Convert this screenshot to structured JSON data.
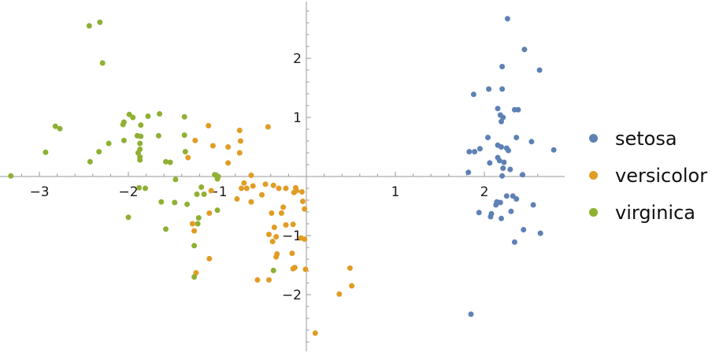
{
  "chart_data": {
    "type": "scatter",
    "x_axis": {
      "range": [
        -3.35,
        2.8
      ],
      "ticks": [
        -3,
        -2,
        -1,
        1,
        2
      ],
      "tick_labels": [
        "−3",
        "−2",
        "−1",
        "1",
        "2"
      ]
    },
    "y_axis": {
      "range": [
        -2.9,
        3.0
      ],
      "ticks": [
        -2,
        -1,
        1,
        2
      ],
      "tick_labels": [
        "−2",
        "−1",
        "1",
        "2"
      ]
    },
    "grid": false,
    "legend_position": "right",
    "series": [
      {
        "name": "setosa",
        "color": "#5e81b5",
        "points": [
          [
            2.26,
            2.67
          ],
          [
            2.45,
            2.15
          ],
          [
            2.62,
            1.8
          ],
          [
            2.2,
            1.86
          ],
          [
            2.2,
            1.48
          ],
          [
            2.05,
            1.48
          ],
          [
            1.88,
            1.39
          ],
          [
            2.15,
            1.15
          ],
          [
            2.38,
            1.13
          ],
          [
            2.34,
            1.13
          ],
          [
            2.18,
            1.04
          ],
          [
            2.21,
            1.0
          ],
          [
            2.19,
            0.93
          ],
          [
            2.36,
            0.66
          ],
          [
            2.04,
            0.66
          ],
          [
            2.53,
            0.59
          ],
          [
            2.15,
            0.53
          ],
          [
            2.19,
            0.5
          ],
          [
            2.25,
            0.48
          ],
          [
            1.95,
            0.47
          ],
          [
            2.78,
            0.45
          ],
          [
            2.27,
            0.44
          ],
          [
            1.83,
            0.42
          ],
          [
            1.89,
            0.42
          ],
          [
            2.15,
            0.32
          ],
          [
            2.17,
            0.27
          ],
          [
            2.22,
            0.24
          ],
          [
            2.06,
            0.23
          ],
          [
            2.21,
            0.14
          ],
          [
            2.29,
            0.12
          ],
          [
            1.82,
            0.07
          ],
          [
            2.43,
            0.03
          ],
          [
            2.2,
            0.01
          ],
          [
            2.25,
            -0.33
          ],
          [
            2.32,
            -0.33
          ],
          [
            2.36,
            -0.38
          ],
          [
            2.14,
            -0.43
          ],
          [
            2.18,
            -0.44
          ],
          [
            2.13,
            -0.48
          ],
          [
            2.55,
            -0.48
          ],
          [
            2.3,
            -0.59
          ],
          [
            1.94,
            -0.61
          ],
          [
            2.08,
            -0.63
          ],
          [
            2.07,
            -0.68
          ],
          [
            2.19,
            -0.71
          ],
          [
            2.44,
            -0.9
          ],
          [
            2.63,
            -0.96
          ],
          [
            2.34,
            -1.11
          ],
          [
            1.85,
            -2.33
          ]
        ]
      },
      {
        "name": "versicolor",
        "color": "#e19c24",
        "points": [
          [
            -1.1,
            0.86
          ],
          [
            -0.75,
            0.78
          ],
          [
            -0.43,
            0.84
          ],
          [
            -1.25,
            0.61
          ],
          [
            -0.74,
            0.6
          ],
          [
            -1.05,
            0.52
          ],
          [
            -0.88,
            0.5
          ],
          [
            -0.75,
            0.4
          ],
          [
            -1.33,
            0.32
          ],
          [
            -0.88,
            0.23
          ],
          [
            -0.62,
            0.02
          ],
          [
            -0.7,
            -0.11
          ],
          [
            -0.37,
            -0.15
          ],
          [
            -0.67,
            -0.2
          ],
          [
            -0.6,
            -0.16
          ],
          [
            -0.46,
            -0.13
          ],
          [
            -0.73,
            -0.2
          ],
          [
            -0.31,
            -0.2
          ],
          [
            -0.23,
            -0.2
          ],
          [
            -0.12,
            -0.19
          ],
          [
            -1.07,
            -0.24
          ],
          [
            -0.05,
            -0.26
          ],
          [
            -0.5,
            -0.31
          ],
          [
            -0.78,
            -0.38
          ],
          [
            -0.62,
            -0.43
          ],
          [
            -0.14,
            -0.27
          ],
          [
            -0.11,
            -0.24
          ],
          [
            -0.04,
            -0.42
          ],
          [
            -0.39,
            -0.62
          ],
          [
            -0.26,
            -0.52
          ],
          [
            -0.28,
            -0.62
          ],
          [
            -0.23,
            -0.82
          ],
          [
            -0.36,
            -0.86
          ],
          [
            -0.15,
            -0.81
          ],
          [
            -0.02,
            -0.55
          ],
          [
            -0.42,
            -0.98
          ],
          [
            -0.34,
            -1.02
          ],
          [
            -0.38,
            -1.1
          ],
          [
            -0.02,
            -1.06
          ],
          [
            -0.06,
            -1.04
          ],
          [
            -1.09,
            -0.62
          ],
          [
            -1.26,
            -0.92
          ],
          [
            -1.28,
            -0.8
          ],
          [
            -0.33,
            -1.31
          ],
          [
            -0.16,
            -1.3
          ],
          [
            -0.34,
            -1.36
          ],
          [
            -1.09,
            -1.39
          ],
          [
            -0.13,
            -1.54
          ],
          [
            -0.01,
            -1.57
          ],
          [
            -0.15,
            -1.56
          ],
          [
            -1.24,
            -1.63
          ],
          [
            -0.55,
            -1.75
          ],
          [
            -0.42,
            -1.75
          ],
          [
            0.49,
            -1.55
          ],
          [
            0.51,
            -1.85
          ],
          [
            0.37,
            -1.99
          ],
          [
            0.1,
            -2.65
          ]
        ]
      },
      {
        "name": "virginica",
        "color": "#8fb032",
        "points": [
          [
            -2.44,
            2.55
          ],
          [
            -2.32,
            2.61
          ],
          [
            -2.29,
            1.92
          ],
          [
            -1.99,
            1.05
          ],
          [
            -2.05,
            0.92
          ],
          [
            -1.95,
            1.0
          ],
          [
            -1.65,
            1.06
          ],
          [
            -1.37,
            1.01
          ],
          [
            -1.78,
            1.02
          ],
          [
            -2.06,
            0.88
          ],
          [
            -1.86,
            0.87
          ],
          [
            -2.82,
            0.85
          ],
          [
            -2.77,
            0.81
          ],
          [
            -1.9,
            0.69
          ],
          [
            -1.86,
            0.68
          ],
          [
            -1.66,
            0.69
          ],
          [
            -1.37,
            0.7
          ],
          [
            -2.05,
            0.61
          ],
          [
            -2.22,
            0.56
          ],
          [
            -1.87,
            0.56
          ],
          [
            -1.87,
            0.46
          ],
          [
            -2.33,
            0.42
          ],
          [
            -2.93,
            0.41
          ],
          [
            -1.89,
            0.4
          ],
          [
            -1.87,
            0.33
          ],
          [
            -1.36,
            0.42
          ],
          [
            -2.43,
            0.25
          ],
          [
            -1.87,
            0.28
          ],
          [
            -1.58,
            0.25
          ],
          [
            -1.53,
            0.24
          ],
          [
            -1.03,
            0.03
          ],
          [
            -0.99,
            0.0
          ],
          [
            -1.0,
            -0.04
          ],
          [
            -3.32,
            0.01
          ],
          [
            -1.47,
            -0.05
          ],
          [
            -1.18,
            -0.18
          ],
          [
            -1.88,
            -0.19
          ],
          [
            -1.81,
            -0.2
          ],
          [
            -1.15,
            -0.3
          ],
          [
            -1.23,
            -0.3
          ],
          [
            -1.63,
            -0.43
          ],
          [
            -1.48,
            -0.44
          ],
          [
            -1.34,
            -0.47
          ],
          [
            -1.0,
            -0.57
          ],
          [
            -1.21,
            -0.7
          ],
          [
            -2.0,
            -0.69
          ],
          [
            -1.22,
            -0.8
          ],
          [
            -1.58,
            -0.89
          ],
          [
            -1.26,
            -1.17
          ],
          [
            -0.37,
            -1.59
          ],
          [
            -1.26,
            -1.7
          ]
        ]
      }
    ]
  }
}
